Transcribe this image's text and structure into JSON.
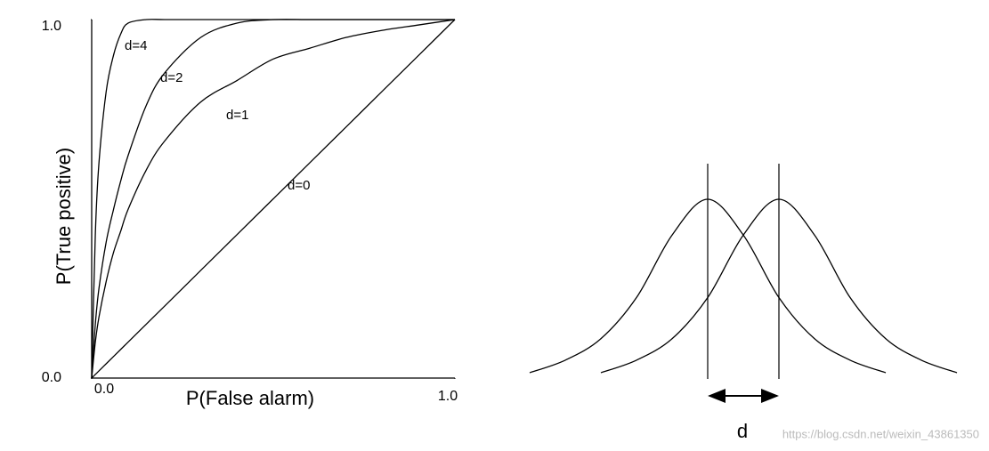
{
  "chart_data": [
    {
      "type": "line",
      "xlabel": "P(False alarm)",
      "ylabel": "P(True positive)",
      "xlim": [
        0,
        1
      ],
      "ylim": [
        0,
        1
      ],
      "xticks": [
        {
          "value": 0,
          "label": "0.0"
        },
        {
          "value": 1,
          "label": "1.0"
        }
      ],
      "yticks": [
        {
          "value": 0,
          "label": "0.0"
        },
        {
          "value": 1,
          "label": "1.0"
        }
      ],
      "x": [
        0,
        0.01,
        0.02,
        0.04,
        0.06,
        0.08,
        0.1,
        0.15,
        0.2,
        0.3,
        0.4,
        0.5,
        0.6,
        0.7,
        0.8,
        0.9,
        1.0
      ],
      "series": [
        {
          "name": "d=4",
          "color": "#000000",
          "values": [
            0,
            0.4,
            0.6,
            0.8,
            0.9,
            0.96,
            0.99,
            1,
            1,
            1,
            1,
            1,
            1,
            1,
            1,
            1,
            1
          ]
        },
        {
          "name": "d=2",
          "color": "#000000",
          "values": [
            0,
            0.15,
            0.25,
            0.38,
            0.47,
            0.55,
            0.62,
            0.76,
            0.85,
            0.95,
            0.99,
            1,
            1,
            1,
            1,
            1,
            1
          ]
        },
        {
          "name": "d=1",
          "color": "#000000",
          "values": [
            0,
            0.1,
            0.17,
            0.27,
            0.35,
            0.41,
            0.47,
            0.58,
            0.66,
            0.77,
            0.83,
            0.89,
            0.92,
            0.95,
            0.97,
            0.985,
            1
          ]
        },
        {
          "name": "d=0",
          "color": "#000000",
          "values": [
            0,
            0.01,
            0.02,
            0.04,
            0.06,
            0.08,
            0.1,
            0.15,
            0.2,
            0.3,
            0.4,
            0.5,
            0.6,
            0.7,
            0.8,
            0.9,
            1.0
          ]
        }
      ]
    },
    {
      "type": "line",
      "xlim": [
        -2.5,
        3.5
      ],
      "ylim": [
        0,
        1
      ],
      "x": [
        -2.5,
        -2,
        -1.5,
        -1,
        -0.5,
        0,
        0.5,
        1,
        1.5,
        2,
        2.5,
        3,
        3.5
      ],
      "series": [
        {
          "color": "#000000",
          "values": [
            0.03,
            0.1,
            0.22,
            0.45,
            0.8,
            1,
            0.8,
            0.45,
            0.22,
            0.1,
            0.03,
            null,
            null
          ]
        },
        {
          "color": "#000000",
          "values": [
            null,
            null,
            0.03,
            0.1,
            0.22,
            0.45,
            0.8,
            1,
            0.8,
            0.45,
            0.22,
            0.1,
            0.03
          ]
        }
      ],
      "vlines": [
        0,
        1
      ],
      "annotation": "d"
    }
  ],
  "watermark": "https://blog.csdn.net/weixin_43861350"
}
